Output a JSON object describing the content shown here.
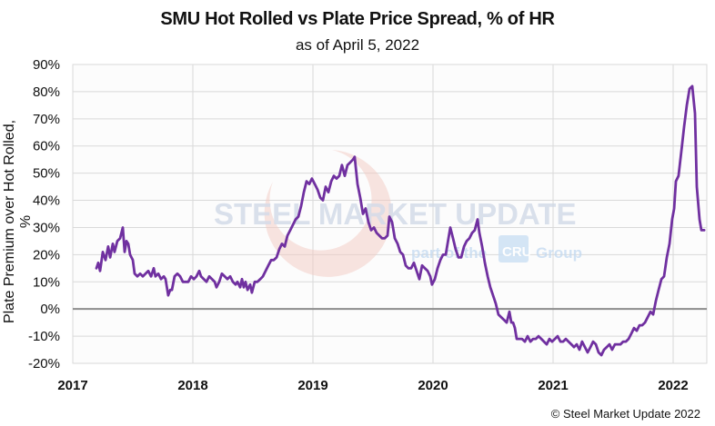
{
  "chart_data": {
    "type": "line",
    "title": "SMU Hot Rolled vs Plate Price Spread, % of HR",
    "subtitle": "as of April 5, 2022",
    "xlabel": "",
    "ylabel": "Plate Premium over Hot Rolled, %",
    "xlim": [
      2017,
      2022.3
    ],
    "ylim": [
      -20,
      90
    ],
    "x_ticks": [
      2017,
      2018,
      2019,
      2020,
      2021,
      2022
    ],
    "x_tick_labels": [
      "2017",
      "2018",
      "2019",
      "2020",
      "2021",
      "2022"
    ],
    "y_ticks": [
      -20,
      -10,
      0,
      10,
      20,
      30,
      40,
      50,
      60,
      70,
      80,
      90
    ],
    "y_tick_labels": [
      "-20%",
      "-10%",
      "0%",
      "10%",
      "20%",
      "30%",
      "40%",
      "50%",
      "60%",
      "70%",
      "80%",
      "90%"
    ],
    "grid": true,
    "zero_line": true,
    "legend": "none",
    "series": [
      {
        "name": "Plate premium over HR",
        "color": "#7030a0",
        "points": [
          [
            2017.197,
            15
          ],
          [
            2017.212,
            17
          ],
          [
            2017.227,
            14
          ],
          [
            2017.25,
            21
          ],
          [
            2017.273,
            18
          ],
          [
            2017.295,
            23
          ],
          [
            2017.311,
            19
          ],
          [
            2017.333,
            24
          ],
          [
            2017.348,
            21
          ],
          [
            2017.371,
            25
          ],
          [
            2017.394,
            26
          ],
          [
            2017.417,
            30
          ],
          [
            2017.432,
            21
          ],
          [
            2017.447,
            25
          ],
          [
            2017.462,
            24
          ],
          [
            2017.477,
            20
          ],
          [
            2017.5,
            18
          ],
          [
            2017.515,
            13
          ],
          [
            2017.538,
            12
          ],
          [
            2017.561,
            13
          ],
          [
            2017.583,
            12
          ],
          [
            2017.606,
            13
          ],
          [
            2017.629,
            14
          ],
          [
            2017.652,
            12
          ],
          [
            2017.674,
            15
          ],
          [
            2017.689,
            12
          ],
          [
            2017.712,
            13
          ],
          [
            2017.735,
            11
          ],
          [
            2017.758,
            12
          ],
          [
            2017.773,
            11
          ],
          [
            2017.795,
            5
          ],
          [
            2017.811,
            7
          ],
          [
            2017.826,
            7
          ],
          [
            2017.848,
            12
          ],
          [
            2017.871,
            13
          ],
          [
            2017.894,
            12
          ],
          [
            2017.917,
            10
          ],
          [
            2017.939,
            10
          ],
          [
            2017.962,
            10
          ],
          [
            2017.985,
            12
          ],
          [
            2018.008,
            11
          ],
          [
            2018.03,
            12
          ],
          [
            2018.053,
            14
          ],
          [
            2018.068,
            12
          ],
          [
            2018.091,
            11
          ],
          [
            2018.114,
            10
          ],
          [
            2018.136,
            12
          ],
          [
            2018.159,
            11
          ],
          [
            2018.182,
            10
          ],
          [
            2018.197,
            8
          ],
          [
            2018.22,
            10
          ],
          [
            2018.242,
            13
          ],
          [
            2018.265,
            12
          ],
          [
            2018.288,
            11
          ],
          [
            2018.311,
            12
          ],
          [
            2018.333,
            10
          ],
          [
            2018.356,
            9
          ],
          [
            2018.371,
            10
          ],
          [
            2018.394,
            8
          ],
          [
            2018.409,
            11
          ],
          [
            2018.424,
            8
          ],
          [
            2018.439,
            10
          ],
          [
            2018.455,
            7
          ],
          [
            2018.477,
            9
          ],
          [
            2018.492,
            6
          ],
          [
            2018.515,
            10
          ],
          [
            2018.538,
            10
          ],
          [
            2018.561,
            11
          ],
          [
            2018.583,
            12
          ],
          [
            2018.606,
            14
          ],
          [
            2018.629,
            16
          ],
          [
            2018.652,
            18
          ],
          [
            2018.674,
            18
          ],
          [
            2018.697,
            19
          ],
          [
            2018.72,
            22
          ],
          [
            2018.742,
            24
          ],
          [
            2018.765,
            23
          ],
          [
            2018.788,
            27
          ],
          [
            2018.811,
            29
          ],
          [
            2018.833,
            31
          ],
          [
            2018.856,
            33
          ],
          [
            2018.879,
            34
          ],
          [
            2018.902,
            38
          ],
          [
            2018.924,
            43
          ],
          [
            2018.947,
            47
          ],
          [
            2018.97,
            46
          ],
          [
            2018.992,
            48
          ],
          [
            2019.015,
            46
          ],
          [
            2019.038,
            44
          ],
          [
            2019.061,
            41
          ],
          [
            2019.083,
            40
          ],
          [
            2019.106,
            45
          ],
          [
            2019.129,
            43
          ],
          [
            2019.152,
            47
          ],
          [
            2019.174,
            49
          ],
          [
            2019.197,
            48
          ],
          [
            2019.22,
            49
          ],
          [
            2019.242,
            53
          ],
          [
            2019.265,
            49
          ],
          [
            2019.288,
            53
          ],
          [
            2019.311,
            54
          ],
          [
            2019.333,
            55
          ],
          [
            2019.348,
            56
          ],
          [
            2019.371,
            46
          ],
          [
            2019.394,
            41
          ],
          [
            2019.417,
            35
          ],
          [
            2019.439,
            37
          ],
          [
            2019.462,
            32
          ],
          [
            2019.485,
            29
          ],
          [
            2019.508,
            30
          ],
          [
            2019.53,
            28
          ],
          [
            2019.553,
            27
          ],
          [
            2019.576,
            26
          ],
          [
            2019.598,
            26
          ],
          [
            2019.621,
            27
          ],
          [
            2019.636,
            34
          ],
          [
            2019.659,
            32
          ],
          [
            2019.682,
            26
          ],
          [
            2019.705,
            24
          ],
          [
            2019.727,
            21
          ],
          [
            2019.75,
            20
          ],
          [
            2019.773,
            16
          ],
          [
            2019.795,
            15
          ],
          [
            2019.818,
            15
          ],
          [
            2019.841,
            17
          ],
          [
            2019.864,
            14
          ],
          [
            2019.886,
            11
          ],
          [
            2019.909,
            16
          ],
          [
            2019.932,
            15
          ],
          [
            2019.955,
            14
          ],
          [
            2019.977,
            12
          ],
          [
            2019.992,
            9
          ],
          [
            2020.015,
            11
          ],
          [
            2020.038,
            15
          ],
          [
            2020.061,
            18
          ],
          [
            2020.083,
            20
          ],
          [
            2020.106,
            20
          ],
          [
            2020.121,
            24
          ],
          [
            2020.144,
            30
          ],
          [
            2020.167,
            26
          ],
          [
            2020.189,
            22
          ],
          [
            2020.212,
            19
          ],
          [
            2020.235,
            19
          ],
          [
            2020.258,
            23
          ],
          [
            2020.28,
            25
          ],
          [
            2020.303,
            26
          ],
          [
            2020.326,
            28
          ],
          [
            2020.348,
            29
          ],
          [
            2020.371,
            33
          ],
          [
            2020.386,
            28
          ],
          [
            2020.409,
            23
          ],
          [
            2020.432,
            17
          ],
          [
            2020.455,
            12
          ],
          [
            2020.477,
            8
          ],
          [
            2020.5,
            5
          ],
          [
            2020.523,
            2
          ],
          [
            2020.545,
            -2
          ],
          [
            2020.568,
            -3
          ],
          [
            2020.591,
            -4
          ],
          [
            2020.614,
            -5
          ],
          [
            2020.636,
            -1
          ],
          [
            2020.652,
            -5
          ],
          [
            2020.667,
            -5
          ],
          [
            2020.682,
            -7
          ],
          [
            2020.697,
            -11
          ],
          [
            2020.72,
            -11
          ],
          [
            2020.742,
            -11
          ],
          [
            2020.765,
            -12
          ],
          [
            2020.788,
            -10
          ],
          [
            2020.811,
            -12
          ],
          [
            2020.833,
            -11
          ],
          [
            2020.856,
            -11
          ],
          [
            2020.879,
            -10
          ],
          [
            2020.902,
            -11
          ],
          [
            2020.924,
            -12
          ],
          [
            2020.947,
            -13
          ],
          [
            2020.97,
            -11
          ],
          [
            2020.992,
            -12
          ],
          [
            2021.015,
            -11
          ],
          [
            2021.038,
            -10
          ],
          [
            2021.061,
            -12
          ],
          [
            2021.083,
            -12
          ],
          [
            2021.106,
            -11
          ],
          [
            2021.129,
            -12
          ],
          [
            2021.152,
            -13
          ],
          [
            2021.174,
            -14
          ],
          [
            2021.197,
            -13
          ],
          [
            2021.22,
            -15
          ],
          [
            2021.242,
            -12
          ],
          [
            2021.265,
            -14
          ],
          [
            2021.288,
            -16
          ],
          [
            2021.311,
            -14
          ],
          [
            2021.333,
            -12
          ],
          [
            2021.356,
            -13
          ],
          [
            2021.379,
            -16
          ],
          [
            2021.402,
            -17
          ],
          [
            2021.424,
            -15
          ],
          [
            2021.447,
            -14
          ],
          [
            2021.47,
            -13
          ],
          [
            2021.492,
            -15
          ],
          [
            2021.515,
            -13
          ],
          [
            2021.538,
            -13
          ],
          [
            2021.561,
            -13
          ],
          [
            2021.583,
            -12
          ],
          [
            2021.606,
            -12
          ],
          [
            2021.629,
            -11
          ],
          [
            2021.652,
            -9
          ],
          [
            2021.674,
            -7
          ],
          [
            2021.697,
            -8
          ],
          [
            2021.72,
            -6
          ],
          [
            2021.742,
            -6
          ],
          [
            2021.765,
            -5
          ],
          [
            2021.788,
            -3
          ],
          [
            2021.811,
            -1
          ],
          [
            2021.833,
            -2
          ],
          [
            2021.856,
            3
          ],
          [
            2021.879,
            7
          ],
          [
            2021.902,
            11
          ],
          [
            2021.924,
            12
          ],
          [
            2021.947,
            19
          ],
          [
            2021.97,
            24
          ],
          [
            2021.992,
            33
          ],
          [
            2022.008,
            37
          ],
          [
            2022.023,
            47
          ],
          [
            2022.045,
            49
          ],
          [
            2022.068,
            58
          ],
          [
            2022.091,
            67
          ],
          [
            2022.114,
            75
          ],
          [
            2022.136,
            81
          ],
          [
            2022.159,
            82
          ],
          [
            2022.182,
            72
          ],
          [
            2022.197,
            45
          ],
          [
            2022.22,
            33
          ],
          [
            2022.235,
            29
          ],
          [
            2022.258,
            29
          ]
        ]
      }
    ],
    "watermark": {
      "brand": "STEEL MARKET UPDATE",
      "tagline_prefix": "part of the",
      "tagline_logo": "CRU",
      "tagline_suffix": "Group"
    }
  },
  "footer": {
    "copyright": "© Steel Market Update 2022"
  }
}
